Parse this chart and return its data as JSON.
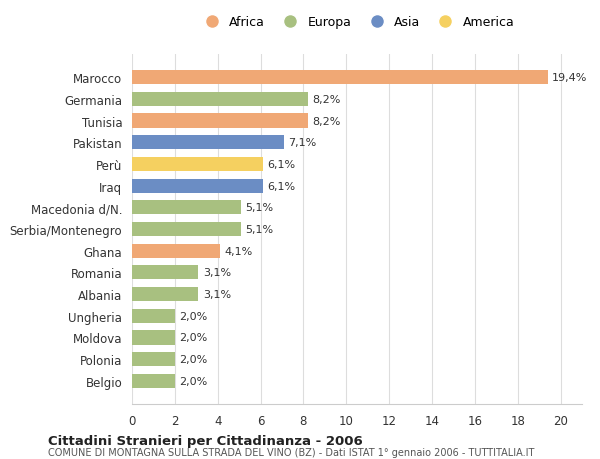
{
  "countries": [
    "Marocco",
    "Germania",
    "Tunisia",
    "Pakistan",
    "Perù",
    "Iraq",
    "Macedonia d/N.",
    "Serbia/Montenegro",
    "Ghana",
    "Romania",
    "Albania",
    "Ungheria",
    "Moldova",
    "Polonia",
    "Belgio"
  ],
  "values": [
    19.4,
    8.2,
    8.2,
    7.1,
    6.1,
    6.1,
    5.1,
    5.1,
    4.1,
    3.1,
    3.1,
    2.0,
    2.0,
    2.0,
    2.0
  ],
  "labels": [
    "19,4%",
    "8,2%",
    "8,2%",
    "7,1%",
    "6,1%",
    "6,1%",
    "5,1%",
    "5,1%",
    "4,1%",
    "3,1%",
    "3,1%",
    "2,0%",
    "2,0%",
    "2,0%",
    "2,0%"
  ],
  "continent": [
    "Africa",
    "Europa",
    "Africa",
    "Asia",
    "America",
    "Asia",
    "Europa",
    "Europa",
    "Africa",
    "Europa",
    "Europa",
    "Europa",
    "Europa",
    "Europa",
    "Europa"
  ],
  "colors": {
    "Africa": "#F0A875",
    "Europa": "#A8C080",
    "Asia": "#6B8DC4",
    "America": "#F5D060"
  },
  "legend_order": [
    "Africa",
    "Europa",
    "Asia",
    "America"
  ],
  "title": "Cittadini Stranieri per Cittadinanza - 2006",
  "subtitle": "COMUNE DI MONTAGNA SULLA STRADA DEL VINO (BZ) - Dati ISTAT 1° gennaio 2006 - TUTTITALIA.IT",
  "xlim": [
    0,
    21
  ],
  "xticks": [
    0,
    2,
    4,
    6,
    8,
    10,
    12,
    14,
    16,
    18,
    20
  ],
  "background_color": "#ffffff",
  "grid_color": "#dddddd"
}
